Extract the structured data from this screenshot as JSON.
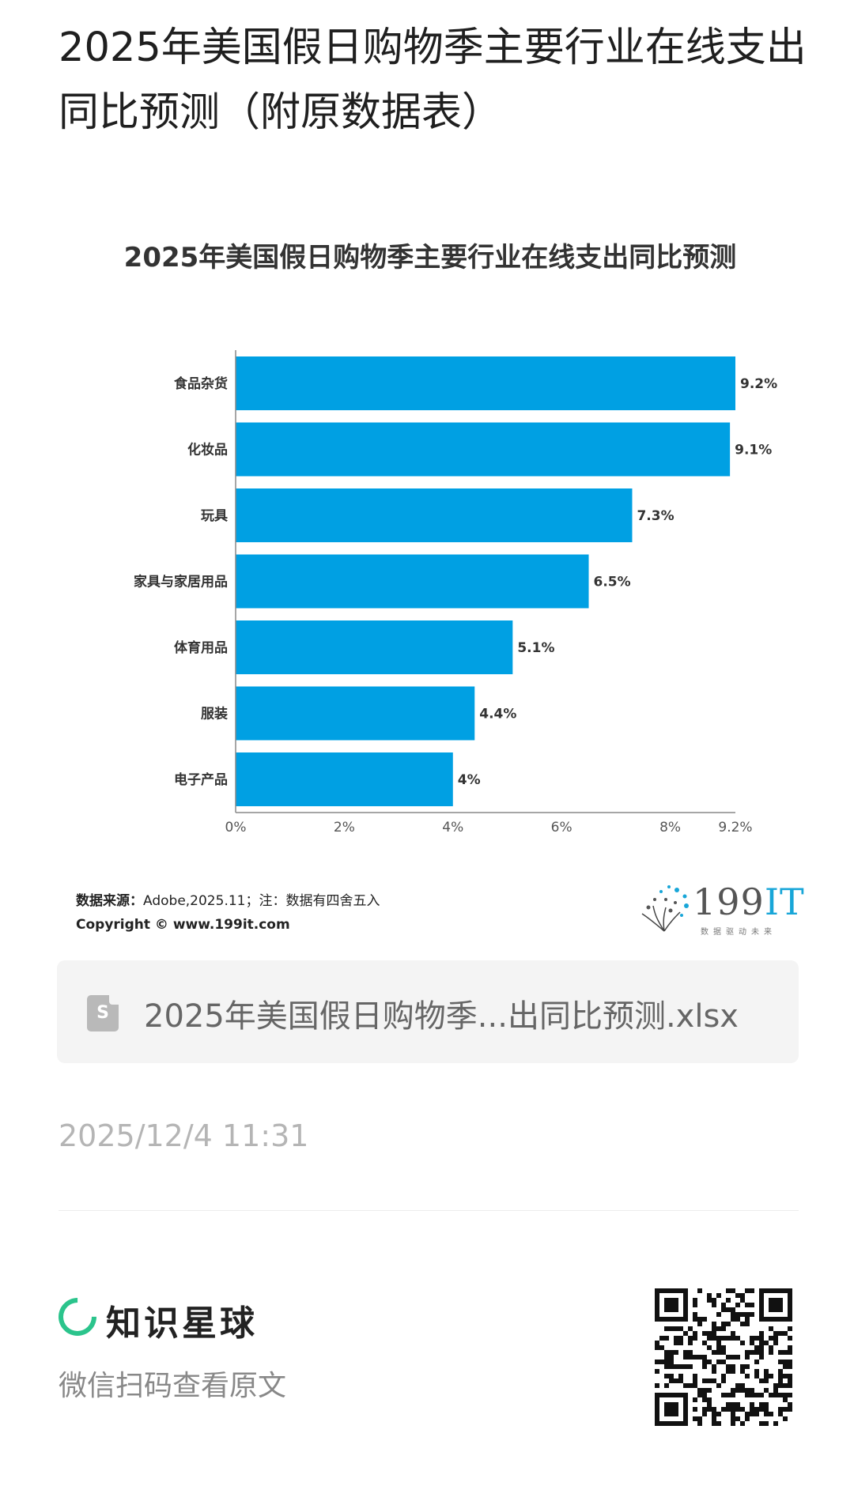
{
  "post": {
    "title": "2025年美国假日购物季主要行业在线支出同比预测（附原数据表）",
    "time": "2025/12/4 11:31"
  },
  "chart_data": {
    "type": "bar",
    "orientation": "horizontal",
    "title": "2025年美国假日购物季主要行业在线支出同比预测",
    "categories": [
      "食品杂货",
      "化妆品",
      "玩具",
      "家具与家居用品",
      "体育用品",
      "服装",
      "电子产品"
    ],
    "values": [
      9.2,
      9.1,
      7.3,
      6.5,
      5.1,
      4.4,
      4
    ],
    "value_labels": [
      "9.2%",
      "9.1%",
      "7.3%",
      "6.5%",
      "5.1%",
      "4.4%",
      "4%"
    ],
    "x_ticks": [
      "0%",
      "2%",
      "4%",
      "6%",
      "8%",
      "9.2%"
    ],
    "x_tick_values": [
      0,
      2,
      4,
      6,
      8,
      9.2
    ],
    "xlim": [
      0,
      9.2
    ],
    "grid": false,
    "bar_color": "#00a0e3"
  },
  "chart_footer": {
    "source_label": "数据来源：",
    "source_text": "Adobe,2025.11；注：数据有四舍五入",
    "copyright": "Copyright ©  www.199it.com",
    "logo_text": "199",
    "logo_accent": "IT",
    "logo_sub": "数据驱动未来"
  },
  "attachment": {
    "icon_letter": "S",
    "name": "2025年美国假日购物季...出同比预测.xlsx"
  },
  "footer": {
    "brand_name": "知识星球",
    "scan_hint": "微信扫码查看原文",
    "brand_color": "#2bc48c"
  }
}
